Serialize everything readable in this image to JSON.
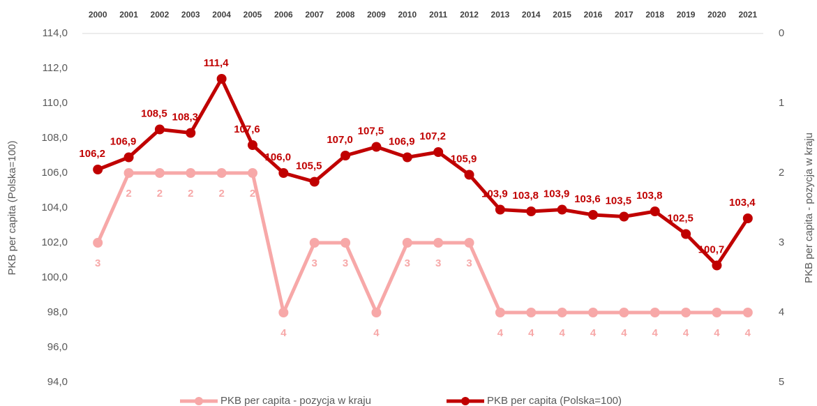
{
  "chart_data": {
    "type": "line",
    "categories": [
      "2000",
      "2001",
      "2002",
      "2003",
      "2004",
      "2005",
      "2006",
      "2007",
      "2008",
      "2009",
      "2010",
      "2011",
      "2012",
      "2013",
      "2014",
      "2015",
      "2016",
      "2017",
      "2018",
      "2019",
      "2020",
      "2021"
    ],
    "series": [
      {
        "name": "PKB per capita - pozycja w kraju",
        "color": "#f7a8a8",
        "axis": "y2",
        "values": [
          3,
          2,
          2,
          2,
          2,
          2,
          4,
          3,
          3,
          4,
          3,
          3,
          3,
          4,
          4,
          4,
          4,
          4,
          4,
          4,
          4,
          4
        ]
      },
      {
        "name": "PKB per capita (Polska=100)",
        "color": "#c00000",
        "values": [
          106.2,
          106.9,
          108.5,
          108.3,
          111.4,
          107.6,
          106.0,
          105.5,
          107.0,
          107.5,
          106.9,
          107.2,
          105.9,
          103.9,
          103.8,
          103.9,
          103.6,
          103.5,
          103.8,
          102.5,
          100.7,
          103.4
        ],
        "value_labels": [
          "106,2",
          "106,9",
          "108,5",
          "108,3",
          "111,4",
          "107,6",
          "106,0",
          "105,5",
          "107,0",
          "107,5",
          "106,9",
          "107,2",
          "105,9",
          "103,9",
          "103,8",
          "103,9",
          "103,6",
          "103,5",
          "103,8",
          "102,5",
          "100,7",
          "103,4"
        ]
      }
    ],
    "y_label": "PKB per capita (Polska=100)",
    "y2_label": "PKB per capita - pozycja w kraju",
    "ylim": [
      94,
      114
    ],
    "yticks": [
      {
        "value": 94,
        "label": "94,0"
      },
      {
        "value": 96,
        "label": "96,0"
      },
      {
        "value": 98,
        "label": "98,0"
      },
      {
        "value": 100,
        "label": "100,0"
      },
      {
        "value": 102,
        "label": "102,0"
      },
      {
        "value": 104,
        "label": "104,0"
      },
      {
        "value": 106,
        "label": "106,0"
      },
      {
        "value": 108,
        "label": "108,0"
      },
      {
        "value": 110,
        "label": "110,0"
      },
      {
        "value": 112,
        "label": "112,0"
      },
      {
        "value": 114,
        "label": "114,0"
      }
    ],
    "y2lim": [
      5,
      0
    ],
    "y2ticks": [
      0,
      1,
      2,
      3,
      4,
      5
    ],
    "legend": "bottom"
  }
}
